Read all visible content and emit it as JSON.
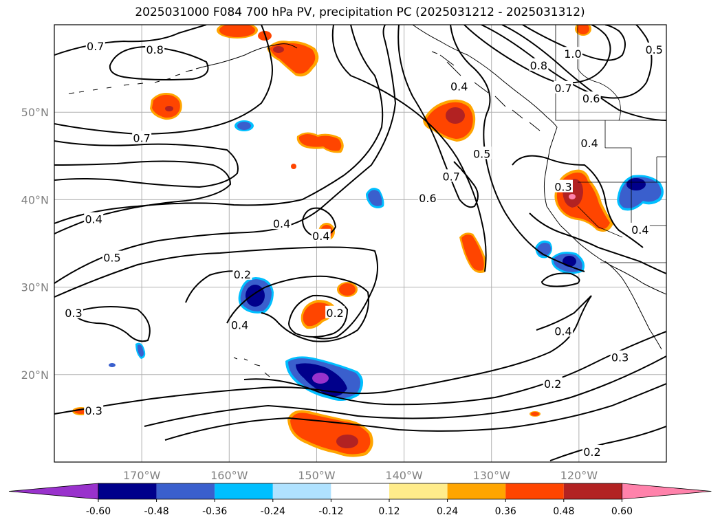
{
  "title": "2025031000 F084 700 hPa PV, precipitation PC (2025031212 - 2025031312)",
  "map": {
    "lon_range": [
      -180,
      -110
    ],
    "lat_range": [
      10,
      60
    ],
    "lat_ticks": [
      {
        "value": 20,
        "label": "20°N"
      },
      {
        "value": 30,
        "label": "30°N"
      },
      {
        "value": 40,
        "label": "40°N"
      },
      {
        "value": 50,
        "label": "50°N"
      }
    ],
    "lon_ticks": [
      {
        "value": -170,
        "label": "170°W"
      },
      {
        "value": -160,
        "label": "160°W"
      },
      {
        "value": -150,
        "label": "150°W"
      },
      {
        "value": -140,
        "label": "140°W"
      },
      {
        "value": -130,
        "label": "130°W"
      },
      {
        "value": -120,
        "label": "120°W"
      }
    ],
    "grid": true
  },
  "contour_labels": [
    {
      "text": "0.7",
      "lon": -175.3,
      "lat": 57.5
    },
    {
      "text": "0.8",
      "lon": -168.5,
      "lat": 57.1
    },
    {
      "text": "0.7",
      "lon": -170.0,
      "lat": 47.0
    },
    {
      "text": "0.4",
      "lon": -175.5,
      "lat": 37.7
    },
    {
      "text": "0.5",
      "lon": -173.4,
      "lat": 33.3
    },
    {
      "text": "0.4",
      "lon": -154.0,
      "lat": 37.2
    },
    {
      "text": "0.4",
      "lon": -149.5,
      "lat": 35.8
    },
    {
      "text": "0.2",
      "lon": -158.5,
      "lat": 31.4
    },
    {
      "text": "0.3",
      "lon": -177.8,
      "lat": 27.0
    },
    {
      "text": "0.4",
      "lon": -158.8,
      "lat": 25.6
    },
    {
      "text": "0.2",
      "lon": -147.9,
      "lat": 27.0
    },
    {
      "text": "0.3",
      "lon": -175.5,
      "lat": 15.8
    },
    {
      "text": "0.4",
      "lon": -133.7,
      "lat": 52.9
    },
    {
      "text": "0.5",
      "lon": -131.1,
      "lat": 45.2
    },
    {
      "text": "0.7",
      "lon": -134.6,
      "lat": 42.6
    },
    {
      "text": "0.6",
      "lon": -137.3,
      "lat": 40.1
    },
    {
      "text": "0.3",
      "lon": -121.8,
      "lat": 41.4
    },
    {
      "text": "0.8",
      "lon": -124.6,
      "lat": 55.3
    },
    {
      "text": "0.7",
      "lon": -121.8,
      "lat": 52.7
    },
    {
      "text": "0.6",
      "lon": -118.6,
      "lat": 51.5
    },
    {
      "text": "1.0",
      "lon": -120.7,
      "lat": 56.6
    },
    {
      "text": "0.5",
      "lon": -111.4,
      "lat": 57.1
    },
    {
      "text": "0.4",
      "lon": -118.8,
      "lat": 46.4
    },
    {
      "text": "0.4",
      "lon": -113.0,
      "lat": 36.5
    },
    {
      "text": "0.4",
      "lon": -121.8,
      "lat": 24.9
    },
    {
      "text": "0.3",
      "lon": -115.3,
      "lat": 21.9
    },
    {
      "text": "0.2",
      "lon": -123.0,
      "lat": 18.9
    },
    {
      "text": "0.2",
      "lon": -118.5,
      "lat": 11.1
    }
  ],
  "colorbar": {
    "levels": [
      "-0.60",
      "-0.48",
      "-0.36",
      "-0.24",
      "-0.12",
      "0.12",
      "0.24",
      "0.36",
      "0.48",
      "0.60"
    ],
    "colors": [
      "#9932cc",
      "#00008b",
      "#3a5fcd",
      "#00bfff",
      "#b0e2ff",
      "#ffffff",
      "#ffec8b",
      "#ffa500",
      "#ff4500",
      "#b22222",
      "#ff82ab"
    ]
  }
}
